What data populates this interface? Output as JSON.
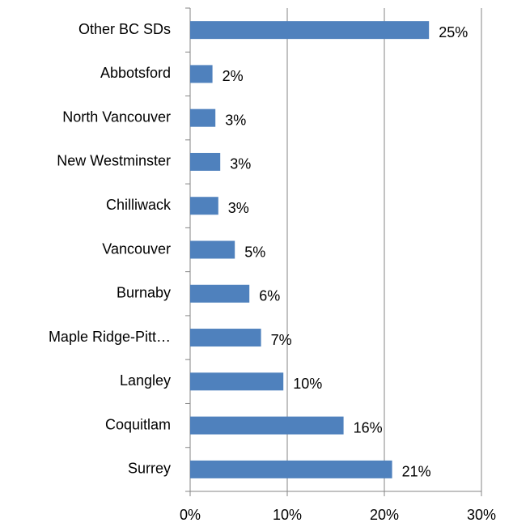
{
  "chart_data": {
    "type": "bar",
    "orientation": "horizontal",
    "categories": [
      "Other BC SDs",
      "Abbotsford",
      "North Vancouver",
      "New Westminster",
      "Chilliwack",
      "Vancouver",
      "Burnaby",
      "Maple Ridge-Pitt…",
      "Langley",
      "Coquitlam",
      "Surrey"
    ],
    "values": [
      24.6,
      2.3,
      2.6,
      3.1,
      2.9,
      4.6,
      6.1,
      7.3,
      9.6,
      15.8,
      20.8
    ],
    "value_labels": [
      "25%",
      "2%",
      "3%",
      "3%",
      "3%",
      "5%",
      "6%",
      "7%",
      "10%",
      "16%",
      "21%"
    ],
    "color": "#4f81bd",
    "xlim": [
      0,
      30
    ],
    "xticks": [
      {
        "value": 0,
        "label": "0%"
      },
      {
        "value": 10,
        "label": "10%"
      },
      {
        "value": 20,
        "label": "20%"
      },
      {
        "value": 30,
        "label": "30%"
      }
    ],
    "grid": true
  }
}
